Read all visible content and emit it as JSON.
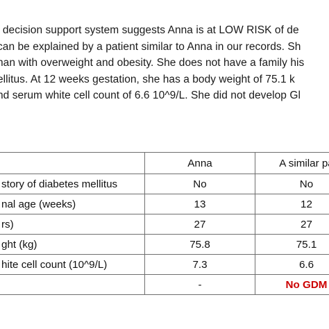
{
  "paragraph": {
    "lines": [
      "l decision support system suggests Anna is at LOW RISK of de",
      "can be explained by a patient similar to Anna in our records. Sh",
      "han with overweight and obesity. She does not have a family his",
      "ellitus. At 12 weeks gestation, she has a body weight of 75.1 k",
      "nd serum white cell count of 6.6 10^9/L. She did not develop Gl",
      "."
    ]
  },
  "table": {
    "headers": [
      "",
      "Anna",
      "A similar pa"
    ],
    "rows": [
      {
        "label": "story of diabetes mellitus",
        "anna": "No",
        "similar": "No"
      },
      {
        "label": "nal age (weeks)",
        "anna": "13",
        "similar": "12"
      },
      {
        "label": "rs)",
        "anna": "27",
        "similar": "27"
      },
      {
        "label": "ght (kg)",
        "anna": "75.8",
        "similar": "75.1"
      },
      {
        "label": "hite cell count (10^9/L)",
        "anna": "7.3",
        "similar": "6.6"
      },
      {
        "label": "",
        "anna": "-",
        "similar": "No GDM"
      }
    ]
  },
  "colors": {
    "text": "#1a1a1a",
    "border": "#6e6e6e",
    "gdm_outcome": "#cc0000"
  }
}
